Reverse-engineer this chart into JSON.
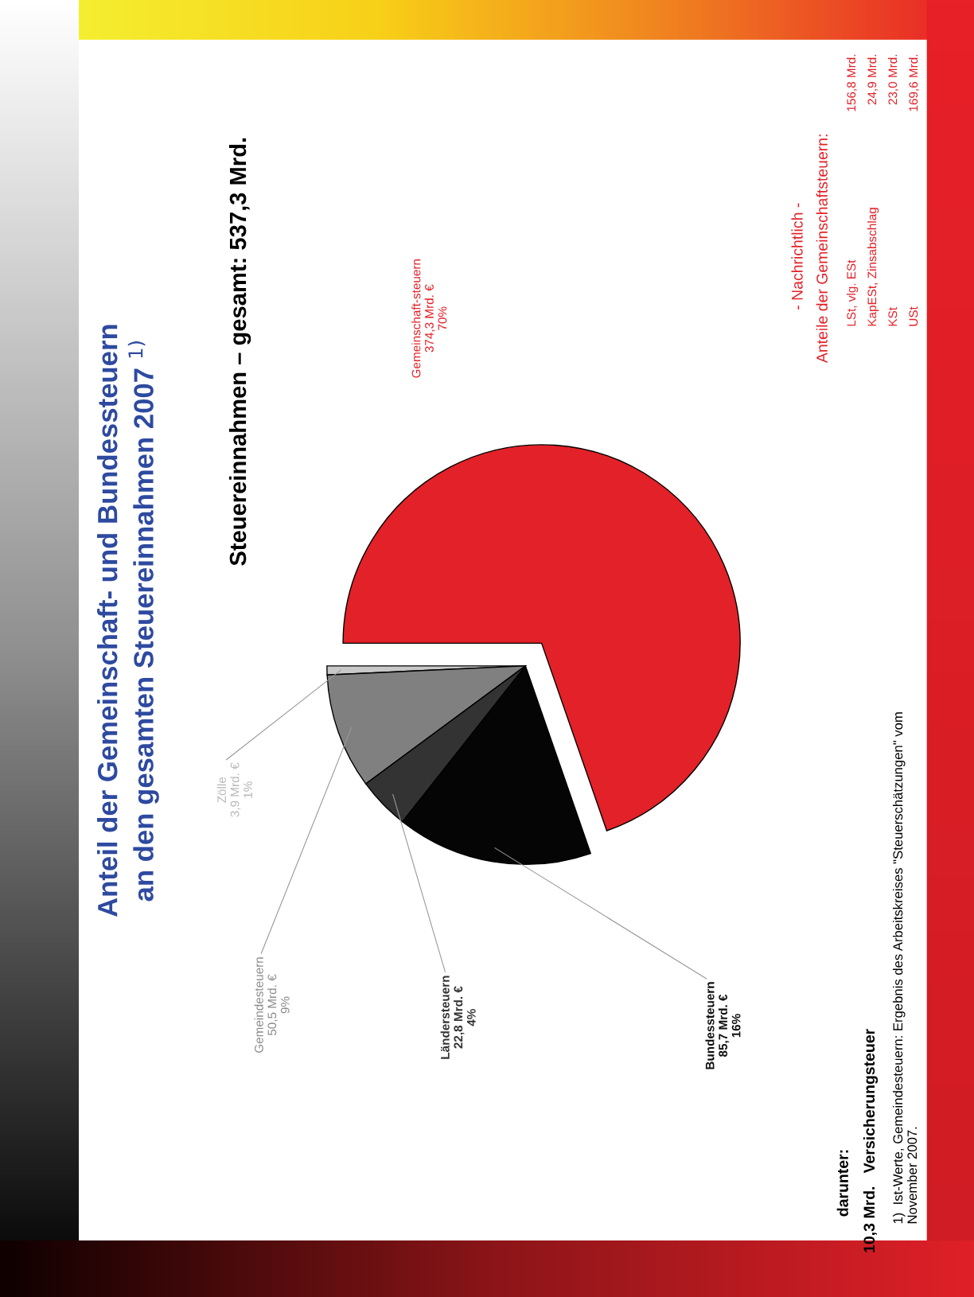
{
  "chart_data": {
    "type": "pie",
    "title": "Anteil der Gemeinschaft- und Bundessteuern\nan den gesamten Steuereinnahmen 2007 $^{1)}$",
    "subtitle": "Steuereinnahmen – gesamt: 537,3 Mrd.",
    "categories": [
      "Zölle",
      "Gemeindesteuern",
      "Ländersteuern",
      "Bundessteuern",
      "Gemeinschaft-steuern"
    ],
    "values": [
      3.9,
      50.5,
      22.8,
      85.7,
      374.3
    ],
    "value_labels": [
      "3,9 Mrd. €\n1%",
      "50,5 Mrd. €\n9%",
      "22,8 Mrd. €\n4%",
      "85,7 Mrd. €\n16%",
      "374,3 Mrd. €\n70%"
    ],
    "colors": [
      "#c8c8c8",
      "#808080",
      "#333333",
      "#050505",
      "#e32128"
    ],
    "legend": false,
    "annotations": [
      "- Nachrichtlich -",
      "Anteile der Gemeinschaftsteuern:",
      "LSt, vlg. ESt",
      "156,8 Mrd.",
      "KapESt, Zinsabschlag",
      "24,9 Mrd.",
      "KSt",
      "23,0 Mrd.",
      "USt",
      "169,6 Mrd.",
      "darunter:",
      "10,3 Mrd.   Versicherungsteuer",
      "1)  Ist-Werte, Gemeindesteuern: Ergebnis des Arbeitskreises \"Steuerschätzungen\" vom\nNovember 2007."
    ]
  }
}
